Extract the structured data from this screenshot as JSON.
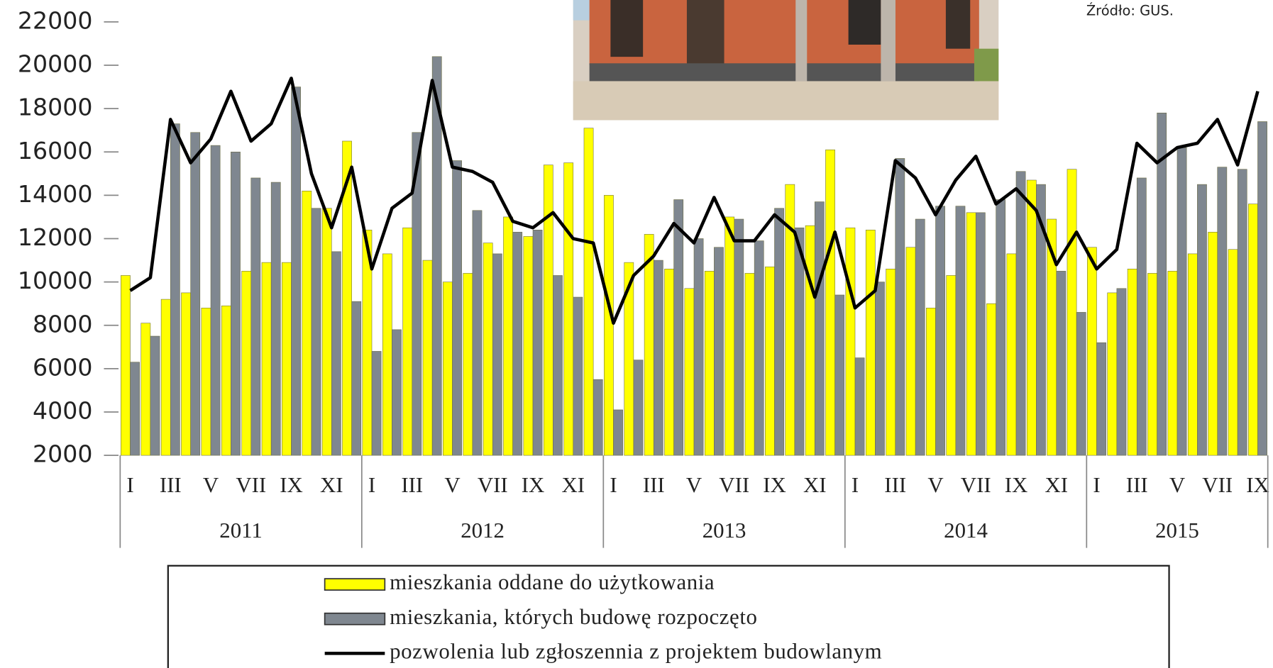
{
  "chart_data": {
    "type": "bar",
    "source": "Źródło: GUS.",
    "categories": [
      "I",
      null,
      "III",
      null,
      "V",
      null,
      "VII",
      null,
      "IX",
      null,
      "XI",
      null,
      "I",
      null,
      "III",
      null,
      "V",
      null,
      "VII",
      null,
      "IX",
      null,
      "XI",
      null,
      "I",
      null,
      "III",
      null,
      "V",
      null,
      "VII",
      null,
      "IX",
      null,
      "XI",
      null,
      "I",
      null,
      "III",
      null,
      "V",
      null,
      "VII",
      null,
      "IX",
      null,
      "XI",
      null,
      "I",
      null,
      "III",
      null,
      "V",
      null,
      "VII",
      null,
      "IX"
    ],
    "years": [
      "2011",
      "2012",
      "2013",
      "2014",
      "2015"
    ],
    "ylim": [
      2000,
      22000
    ],
    "yticks": [
      2000,
      4000,
      6000,
      8000,
      10000,
      12000,
      14000,
      16000,
      18000,
      20000,
      22000
    ],
    "series": [
      {
        "name": "mieszkania oddane do użytkowania",
        "color": "#ffff00",
        "type": "bar",
        "values": [
          10300,
          8100,
          9200,
          9500,
          8800,
          8900,
          10500,
          10900,
          10900,
          14200,
          13400,
          16500,
          12400,
          11300,
          12500,
          11000,
          10000,
          10400,
          11800,
          13000,
          12100,
          15400,
          15500,
          17100,
          14000,
          10900,
          12200,
          10600,
          9700,
          10500,
          13000,
          10400,
          10700,
          14500,
          12600,
          16100,
          12500,
          12400,
          10600,
          11600,
          8800,
          10300,
          13200,
          9000,
          11300,
          14700,
          12900,
          15200,
          11600,
          9500,
          10600,
          10400,
          10500,
          11300,
          12300,
          11500,
          13600
        ]
      },
      {
        "name": "mieszkania, których budowę rozpoczęto",
        "color": "#7f8790",
        "type": "bar",
        "values": [
          6300,
          7500,
          17300,
          16900,
          16300,
          16000,
          14800,
          14600,
          19000,
          13400,
          11400,
          9100,
          6800,
          7800,
          16900,
          20400,
          15600,
          13300,
          11300,
          12300,
          12400,
          10300,
          9300,
          5500,
          4100,
          6400,
          11000,
          13800,
          12000,
          11600,
          12900,
          11900,
          13400,
          12500,
          13700,
          9400,
          6500,
          10000,
          15700,
          12900,
          13500,
          13500,
          13200,
          13800,
          15100,
          14500,
          10500,
          8600,
          7200,
          9700,
          14800,
          17800,
          16200,
          14500,
          15300,
          15200,
          17400
        ]
      },
      {
        "name": "pozwolenia lub zgłoszennia z projektem budowlanym",
        "color": "#000000",
        "type": "line",
        "values": [
          9600,
          10200,
          17500,
          15500,
          16600,
          18800,
          16500,
          17300,
          19400,
          15000,
          12500,
          15300,
          10600,
          13400,
          14100,
          19300,
          15300,
          15100,
          14600,
          12800,
          12500,
          13200,
          12000,
          11800,
          8100,
          10300,
          11200,
          12700,
          11800,
          13900,
          11900,
          11900,
          13100,
          12300,
          9300,
          12300,
          8800,
          9600,
          15600,
          14800,
          13100,
          14700,
          15800,
          13600,
          14300,
          13300,
          10800,
          12300,
          10600,
          11500,
          16400,
          15500,
          16200,
          16400,
          17500,
          15400,
          18800
        ]
      }
    ]
  }
}
